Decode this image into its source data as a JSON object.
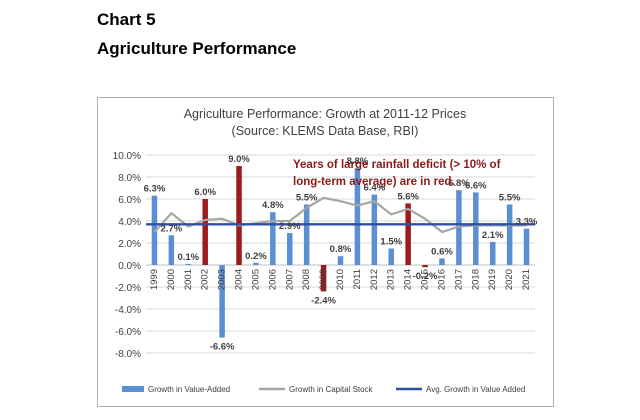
{
  "page": {
    "heading_1": "Chart 5",
    "heading_2": "Agriculture Performance"
  },
  "chart_data": {
    "type": "bar",
    "title": "Agriculture Performance: Growth at 2011-12 Prices",
    "subtitle": "(Source: KLEMS Data Base, RBI)",
    "annotation": [
      "Years of large rainfall deficit (> 10% of",
      "long-term average) are in red."
    ],
    "categories": [
      "1999",
      "2000",
      "2001",
      "2002",
      "2003",
      "2004",
      "2005",
      "2006",
      "2007",
      "2008",
      "2009",
      "2010",
      "2011",
      "2012",
      "2013",
      "2014",
      "2015",
      "2016",
      "2017",
      "2018",
      "2019",
      "2020",
      "2021"
    ],
    "ylim": [
      -9.0,
      10.0
    ],
    "yticks": [
      "10.0%",
      "8.0%",
      "6.0%",
      "4.0%",
      "2.0%",
      "0.0%",
      "-2.0%",
      "-4.0%",
      "-6.0%",
      "-8.0%"
    ],
    "ytick_values": [
      10,
      8,
      6,
      4,
      2,
      0,
      -2,
      -4,
      -6,
      -8
    ],
    "grid": true,
    "legend_position": "bottom",
    "colors": {
      "value_added": "#5b8fd4",
      "deficit_year": "#9e1b1b",
      "capital_stock": "#a6a6a6",
      "average": "#2e4fa3",
      "annotation": "#8b1a1a",
      "title": "#404040",
      "grid": "#d9d9d9"
    },
    "series": [
      {
        "name": "Growth in Value-Added",
        "type": "bar",
        "values": [
          6.3,
          2.7,
          0.1,
          6.0,
          -6.6,
          9.0,
          0.2,
          4.8,
          2.9,
          5.5,
          -2.4,
          0.8,
          8.8,
          6.4,
          1.5,
          5.6,
          -0.2,
          0.6,
          6.8,
          6.6,
          2.1,
          5.5,
          3.3
        ],
        "labels": [
          "6.3%",
          "2.7%",
          "0.1%",
          "6.0%",
          "-6.6%",
          "9.0%",
          "0.2%",
          "4.8%",
          "2.9%",
          "5.5%",
          "-2.4%",
          "0.8%",
          "8.8%",
          "6.4%",
          "1.5%",
          "5.6%",
          "-0.2%",
          "0.6%",
          "6.8%",
          "6.6%",
          "2.1%",
          "5.5%",
          "3.3%"
        ],
        "deficit_years": [
          "2002",
          "2004",
          "2009",
          "2014",
          "2015"
        ]
      },
      {
        "name": "Growth in Capital Stock",
        "type": "line",
        "values": [
          3.0,
          4.7,
          3.5,
          4.1,
          4.2,
          3.6,
          3.8,
          4.0,
          4.0,
          5.2,
          6.1,
          5.8,
          5.4,
          5.8,
          4.6,
          5.1,
          4.2,
          3.0,
          3.5,
          3.6,
          3.6,
          3.6,
          3.6
        ]
      },
      {
        "name": "Avg. Growth in Value Added",
        "type": "hline",
        "value": 3.7
      }
    ]
  }
}
